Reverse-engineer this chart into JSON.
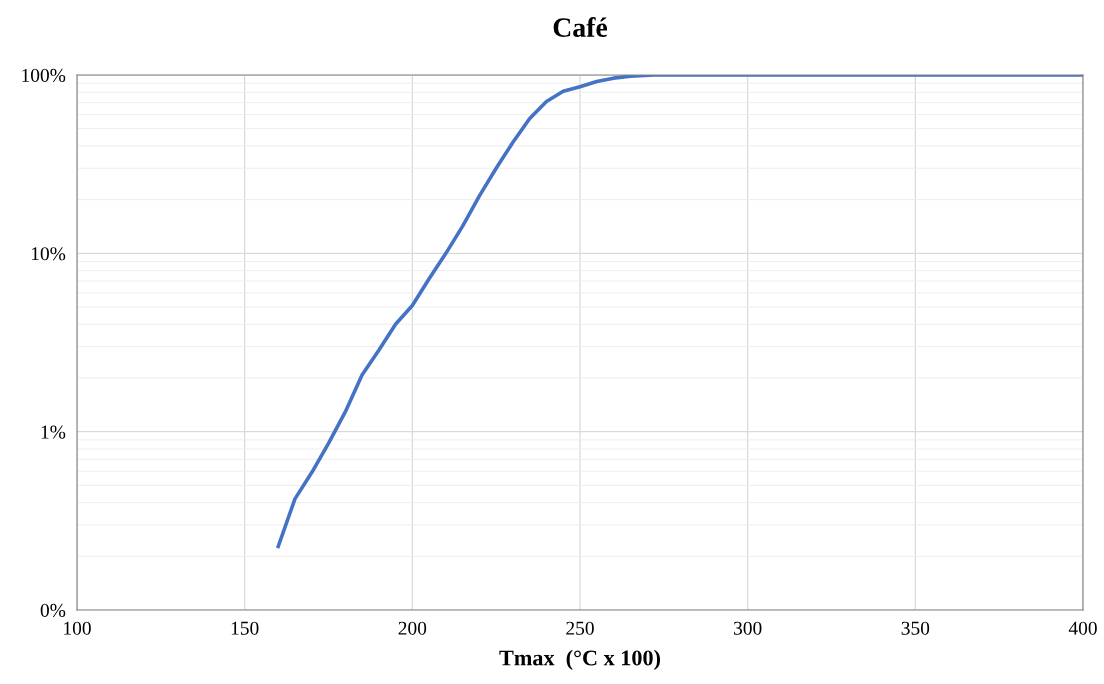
{
  "chart_data": {
    "type": "line",
    "title": "Café",
    "xlabel": "Tmax  (°C x 100)",
    "x": [
      160,
      165,
      170,
      175,
      180,
      185,
      190,
      195,
      200,
      205,
      210,
      215,
      220,
      225,
      230,
      235,
      240,
      245,
      250,
      255,
      260,
      265,
      272,
      300,
      350,
      400
    ],
    "series": [
      {
        "color": "#4472c4",
        "values": [
          0.227,
          0.42,
          0.59,
          0.86,
          1.29,
          2.08,
          2.86,
          4.0,
          5.1,
          7.2,
          10,
          14.2,
          21,
          30,
          42,
          57,
          71,
          81,
          86,
          92,
          96,
          98.6,
          100,
          100,
          100,
          100
        ]
      }
    ],
    "log": "y",
    "xlim": [
      100,
      400
    ],
    "xticks": [
      100,
      150,
      200,
      250,
      300,
      350,
      400
    ],
    "ylim": [
      0.1,
      100
    ],
    "yticks": [
      {
        "value": 0.1,
        "label": "0%"
      },
      {
        "value": 1,
        "label": "1%"
      },
      {
        "value": 10,
        "label": "10%"
      },
      {
        "value": 100,
        "label": "100%"
      }
    ],
    "grid": true,
    "marker": "none",
    "line_style": "solid",
    "legend": false
  }
}
